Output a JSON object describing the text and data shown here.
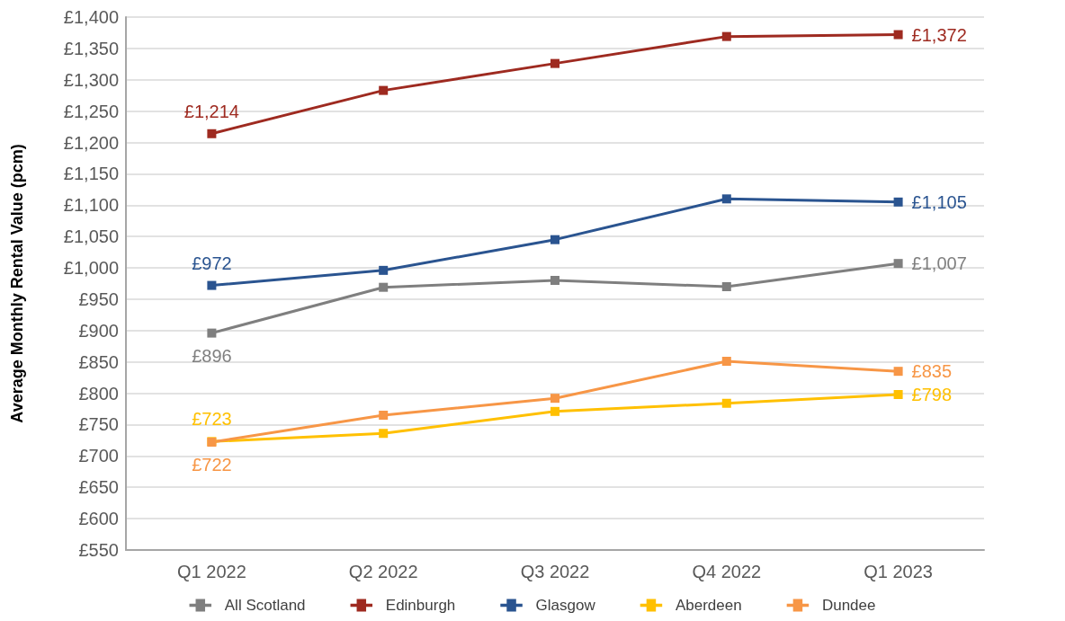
{
  "chart_data": {
    "type": "line",
    "ylabel": "Average Monthly Rental Value (pcm)",
    "categories": [
      "Q1 2022",
      "Q2 2022",
      "Q3 2022",
      "Q4 2022",
      "Q1 2023"
    ],
    "series": [
      {
        "name": "All Scotland",
        "color": "#7f7f7f",
        "values": [
          896,
          969,
          980,
          970,
          1007
        ],
        "value_labels": [
          "£896",
          null,
          null,
          null,
          "£1,007"
        ]
      },
      {
        "name": "Edinburgh",
        "color": "#9e2a20",
        "values": [
          1214,
          1283,
          1326,
          1369,
          1372
        ],
        "value_labels": [
          "£1,214",
          null,
          null,
          null,
          "£1,372"
        ]
      },
      {
        "name": "Glasgow",
        "color": "#2a5490",
        "values": [
          972,
          996,
          1045,
          1110,
          1105
        ],
        "value_labels": [
          "£972",
          null,
          null,
          null,
          "£1,105"
        ]
      },
      {
        "name": "Aberdeen",
        "color": "#ffc000",
        "values": [
          723,
          736,
          771,
          784,
          798
        ],
        "value_labels": [
          "£723",
          null,
          null,
          null,
          "£798"
        ]
      },
      {
        "name": "Dundee",
        "color": "#f79646",
        "values": [
          722,
          765,
          792,
          851,
          835
        ],
        "value_labels": [
          "£722",
          null,
          null,
          null,
          "£835"
        ]
      }
    ],
    "ylim": [
      550,
      1400
    ],
    "yticks": [
      {
        "value": 550,
        "label": "£550"
      },
      {
        "value": 600,
        "label": "£600"
      },
      {
        "value": 650,
        "label": "£650"
      },
      {
        "value": 700,
        "label": "£700"
      },
      {
        "value": 750,
        "label": "£750"
      },
      {
        "value": 800,
        "label": "£800"
      },
      {
        "value": 850,
        "label": "£850"
      },
      {
        "value": 900,
        "label": "£900"
      },
      {
        "value": 950,
        "label": "£950"
      },
      {
        "value": 1000,
        "label": "£1,000"
      },
      {
        "value": 1050,
        "label": "£1,050"
      },
      {
        "value": 1100,
        "label": "£1,100"
      },
      {
        "value": 1150,
        "label": "£1,150"
      },
      {
        "value": 1200,
        "label": "£1,200"
      },
      {
        "value": 1250,
        "label": "£1,250"
      },
      {
        "value": 1300,
        "label": "£1,300"
      },
      {
        "value": 1350,
        "label": "£1,350"
      },
      {
        "value": 1400,
        "label": "£1,400"
      }
    ],
    "grid": "y",
    "legend": "bottom",
    "marker": "square",
    "line_style": "solid"
  }
}
